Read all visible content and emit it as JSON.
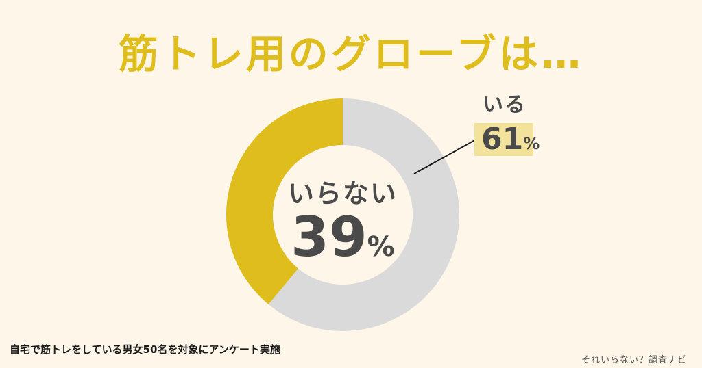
{
  "title": "筋トレ用のグローブは…",
  "chart_data": {
    "type": "pie",
    "donut": true,
    "categories": [
      "いる",
      "いらない"
    ],
    "values": [
      61,
      39
    ],
    "unit": "%",
    "colors": [
      "#dadada",
      "#dfbd1c"
    ]
  },
  "labels": {
    "center_category": "いらない",
    "center_value": "39",
    "callout_category": "いる",
    "callout_value": "61",
    "percent_sign": "%"
  },
  "footnote": "自宅で筋トレをしている男女50名を対象にアンケート実施",
  "brand": "それいらない？調査ナビ"
}
